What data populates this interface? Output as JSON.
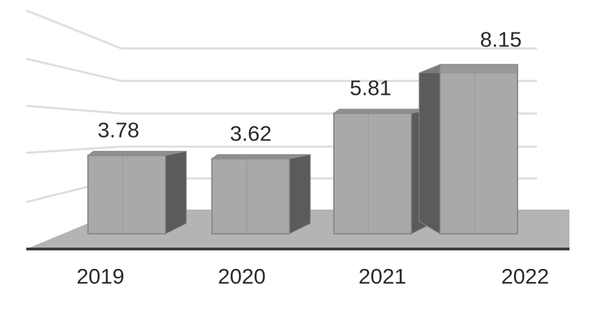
{
  "chart_data": {
    "type": "bar",
    "style": "3d",
    "categories": [
      "2019",
      "2020",
      "2021",
      "2022"
    ],
    "values": [
      3.78,
      3.62,
      5.81,
      8.15
    ],
    "title": "",
    "xlabel": "",
    "ylabel": "",
    "ylim": [
      0,
      8
    ],
    "grid": true,
    "legend": "none",
    "colors": {
      "bar_front": "#a9a9a9",
      "bar_side": "#5b5b5b",
      "bar_top": "#8f8f8f",
      "bar_edge": "#8a8a8a",
      "floor": "#b4b4b4",
      "gridline": "#dedede",
      "baseline": "#3a3a3a",
      "text": "#2a2a2a"
    }
  }
}
